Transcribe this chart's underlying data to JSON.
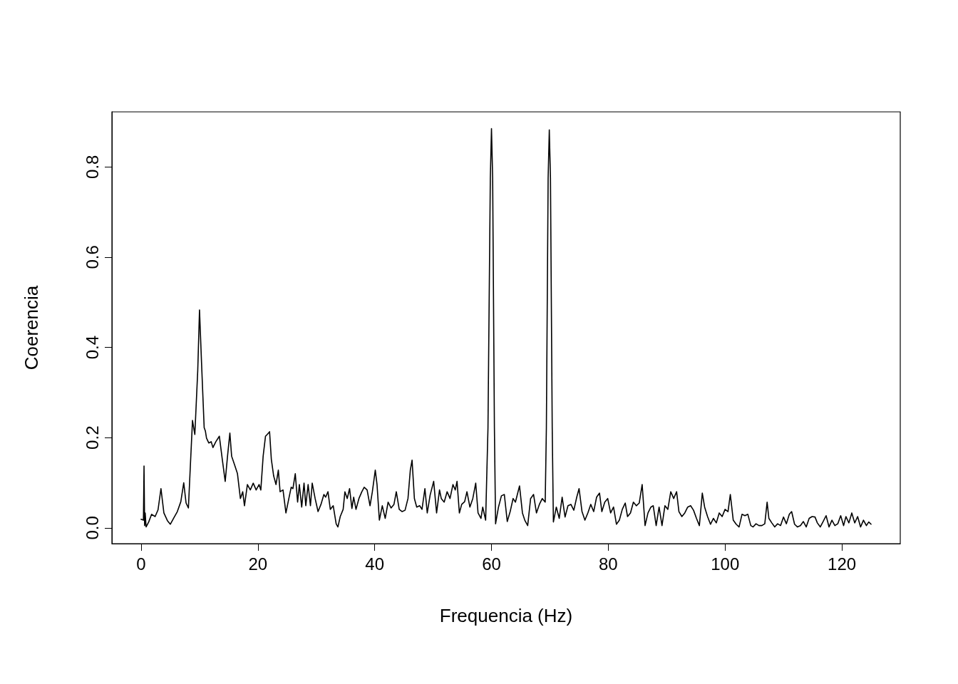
{
  "chart_data": {
    "type": "line",
    "xlabel": "Frequencia (Hz)",
    "ylabel": "Coerencia",
    "xlim": [
      -5,
      130
    ],
    "ylim": [
      -0.035,
      0.922
    ],
    "xticks": [
      0,
      20,
      40,
      60,
      80,
      100,
      120
    ],
    "yticks": [
      {
        "value": 0,
        "label": "0.0"
      },
      {
        "value": 0.2,
        "label": "0.2"
      },
      {
        "value": 0.4,
        "label": "0.4"
      },
      {
        "value": 0.6,
        "label": "0.6"
      },
      {
        "value": 0.8,
        "label": "0.8"
      }
    ],
    "marker": "none",
    "line_style": "solid",
    "grid": false,
    "x": [
      0,
      0.4,
      0.5,
      0.6,
      0.7,
      0.85,
      1.3,
      1.8,
      2.4,
      2.9,
      3.4,
      3.9,
      4.5,
      5.0,
      5.6,
      6.2,
      6.8,
      7.3,
      7.7,
      8.1,
      8.4,
      8.8,
      9.2,
      9.7,
      10.0,
      10.4,
      10.8,
      11.0,
      11.2,
      11.6,
      12.0,
      12.3,
      12.8,
      13.4,
      13.9,
      14.4,
      14.8,
      15.2,
      15.5,
      16.0,
      16.5,
      17.0,
      17.4,
      17.7,
      18.2,
      18.7,
      19.2,
      19.7,
      20.2,
      20.5,
      20.9,
      21.3,
      21.6,
      22.0,
      22.3,
      22.7,
      23.1,
      23.5,
      23.8,
      24.3,
      24.8,
      25.3,
      25.7,
      26.0,
      26.4,
      26.8,
      27.1,
      27.5,
      27.9,
      28.2,
      28.6,
      29.0,
      29.3,
      29.8,
      30.3,
      30.8,
      31.3,
      31.6,
      32.0,
      32.4,
      32.9,
      33.4,
      33.7,
      34.1,
      34.6,
      34.9,
      35.3,
      35.7,
      36.1,
      36.4,
      36.8,
      37.3,
      37.8,
      38.2,
      38.7,
      39.2,
      39.6,
      40.1,
      40.4,
      40.8,
      41.3,
      41.8,
      42.3,
      42.8,
      43.3,
      43.7,
      44.2,
      44.7,
      45.2,
      45.7,
      46.1,
      46.4,
      46.8,
      47.2,
      47.7,
      48.1,
      48.6,
      49.0,
      49.5,
      50.1,
      50.6,
      51.1,
      51.4,
      51.9,
      52.4,
      52.9,
      53.4,
      53.8,
      54.1,
      54.5,
      54.9,
      55.4,
      55.8,
      56.3,
      56.8,
      57.3,
      57.7,
      58.2,
      58.5,
      59.0,
      59.4,
      59.8,
      60.0,
      60.2,
      60.5,
      60.7,
      61.2,
      61.7,
      62.2,
      62.7,
      63.2,
      63.7,
      64.1,
      64.8,
      65.3,
      65.7,
      66.2,
      66.7,
      67.2,
      67.7,
      68.2,
      68.7,
      69.2,
      69.4,
      69.7,
      69.9,
      70.1,
      70.4,
      70.6,
      71.1,
      71.6,
      72.1,
      72.6,
      73.1,
      73.6,
      74.1,
      74.6,
      75.0,
      75.5,
      76.0,
      76.5,
      77.0,
      77.5,
      78.0,
      78.5,
      78.9,
      79.4,
      79.9,
      80.4,
      80.9,
      81.4,
      81.9,
      82.4,
      82.9,
      83.3,
      83.8,
      84.3,
      84.8,
      85.3,
      85.8,
      86.3,
      86.8,
      87.3,
      87.7,
      88.2,
      88.7,
      89.2,
      89.7,
      90.2,
      90.7,
      91.2,
      91.7,
      92.1,
      92.6,
      93.1,
      93.6,
      94.1,
      94.6,
      95.1,
      95.6,
      96.1,
      96.5,
      97.0,
      97.5,
      98.0,
      98.5,
      99.0,
      99.5,
      100.0,
      100.5,
      100.9,
      101.4,
      101.9,
      102.4,
      102.9,
      103.4,
      103.9,
      104.4,
      104.8,
      105.3,
      105.8,
      106.3,
      106.8,
      107.2,
      107.5,
      108.0,
      108.5,
      109.0,
      109.5,
      110.0,
      110.5,
      111.0,
      111.4,
      111.9,
      112.4,
      112.9,
      113.4,
      113.9,
      114.4,
      114.9,
      115.4,
      115.8,
      116.3,
      116.8,
      117.3,
      117.8,
      118.3,
      118.8,
      119.3,
      119.8,
      120.3,
      120.7,
      121.2,
      121.7,
      122.2,
      122.7,
      123.2,
      123.7,
      124.2,
      124.6,
      125.0
    ],
    "series": [
      {
        "color": "#000000",
        "values": [
          0.019,
          0.017,
          0.137,
          0.005,
          0.033,
          0.002,
          0.013,
          0.03,
          0.025,
          0.04,
          0.087,
          0.033,
          0.016,
          0.008,
          0.022,
          0.036,
          0.058,
          0.1,
          0.055,
          0.044,
          0.128,
          0.238,
          0.207,
          0.349,
          0.483,
          0.349,
          0.222,
          0.215,
          0.199,
          0.188,
          0.191,
          0.178,
          0.191,
          0.203,
          0.152,
          0.103,
          0.159,
          0.21,
          0.159,
          0.14,
          0.12,
          0.065,
          0.08,
          0.049,
          0.096,
          0.084,
          0.099,
          0.084,
          0.096,
          0.084,
          0.159,
          0.203,
          0.207,
          0.213,
          0.152,
          0.115,
          0.096,
          0.128,
          0.08,
          0.084,
          0.033,
          0.065,
          0.09,
          0.087,
          0.12,
          0.057,
          0.096,
          0.046,
          0.099,
          0.049,
          0.096,
          0.049,
          0.099,
          0.065,
          0.036,
          0.052,
          0.074,
          0.068,
          0.08,
          0.041,
          0.049,
          0.009,
          0.002,
          0.025,
          0.041,
          0.08,
          0.065,
          0.087,
          0.043,
          0.068,
          0.041,
          0.065,
          0.08,
          0.09,
          0.084,
          0.049,
          0.08,
          0.128,
          0.096,
          0.017,
          0.049,
          0.021,
          0.057,
          0.044,
          0.052,
          0.08,
          0.041,
          0.036,
          0.039,
          0.065,
          0.128,
          0.15,
          0.065,
          0.046,
          0.049,
          0.041,
          0.087,
          0.033,
          0.073,
          0.103,
          0.033,
          0.084,
          0.065,
          0.057,
          0.08,
          0.065,
          0.096,
          0.084,
          0.103,
          0.033,
          0.052,
          0.058,
          0.08,
          0.046,
          0.065,
          0.099,
          0.033,
          0.021,
          0.046,
          0.017,
          0.222,
          0.775,
          0.885,
          0.775,
          0.222,
          0.009,
          0.046,
          0.071,
          0.074,
          0.014,
          0.036,
          0.065,
          0.057,
          0.093,
          0.033,
          0.017,
          0.005,
          0.065,
          0.074,
          0.033,
          0.052,
          0.065,
          0.057,
          0.222,
          0.775,
          0.882,
          0.775,
          0.222,
          0.013,
          0.046,
          0.021,
          0.068,
          0.024,
          0.049,
          0.052,
          0.039,
          0.068,
          0.087,
          0.036,
          0.017,
          0.033,
          0.052,
          0.036,
          0.068,
          0.077,
          0.036,
          0.057,
          0.065,
          0.033,
          0.046,
          0.008,
          0.017,
          0.041,
          0.055,
          0.025,
          0.033,
          0.057,
          0.049,
          0.055,
          0.096,
          0.005,
          0.033,
          0.046,
          0.049,
          0.005,
          0.046,
          0.005,
          0.049,
          0.041,
          0.08,
          0.065,
          0.08,
          0.036,
          0.025,
          0.033,
          0.046,
          0.049,
          0.039,
          0.021,
          0.005,
          0.077,
          0.046,
          0.025,
          0.008,
          0.021,
          0.011,
          0.033,
          0.025,
          0.041,
          0.036,
          0.074,
          0.017,
          0.008,
          0.002,
          0.03,
          0.027,
          0.03,
          0.005,
          0.002,
          0.009,
          0.005,
          0.005,
          0.009,
          0.057,
          0.021,
          0.011,
          0.002,
          0.009,
          0.005,
          0.024,
          0.009,
          0.03,
          0.036,
          0.008,
          0.002,
          0.005,
          0.014,
          0.002,
          0.021,
          0.025,
          0.024,
          0.011,
          0.002,
          0.014,
          0.027,
          0.002,
          0.017,
          0.005,
          0.009,
          0.027,
          0.005,
          0.025,
          0.011,
          0.033,
          0.011,
          0.025,
          0.002,
          0.017,
          0.005,
          0.013,
          0.008
        ]
      }
    ]
  }
}
